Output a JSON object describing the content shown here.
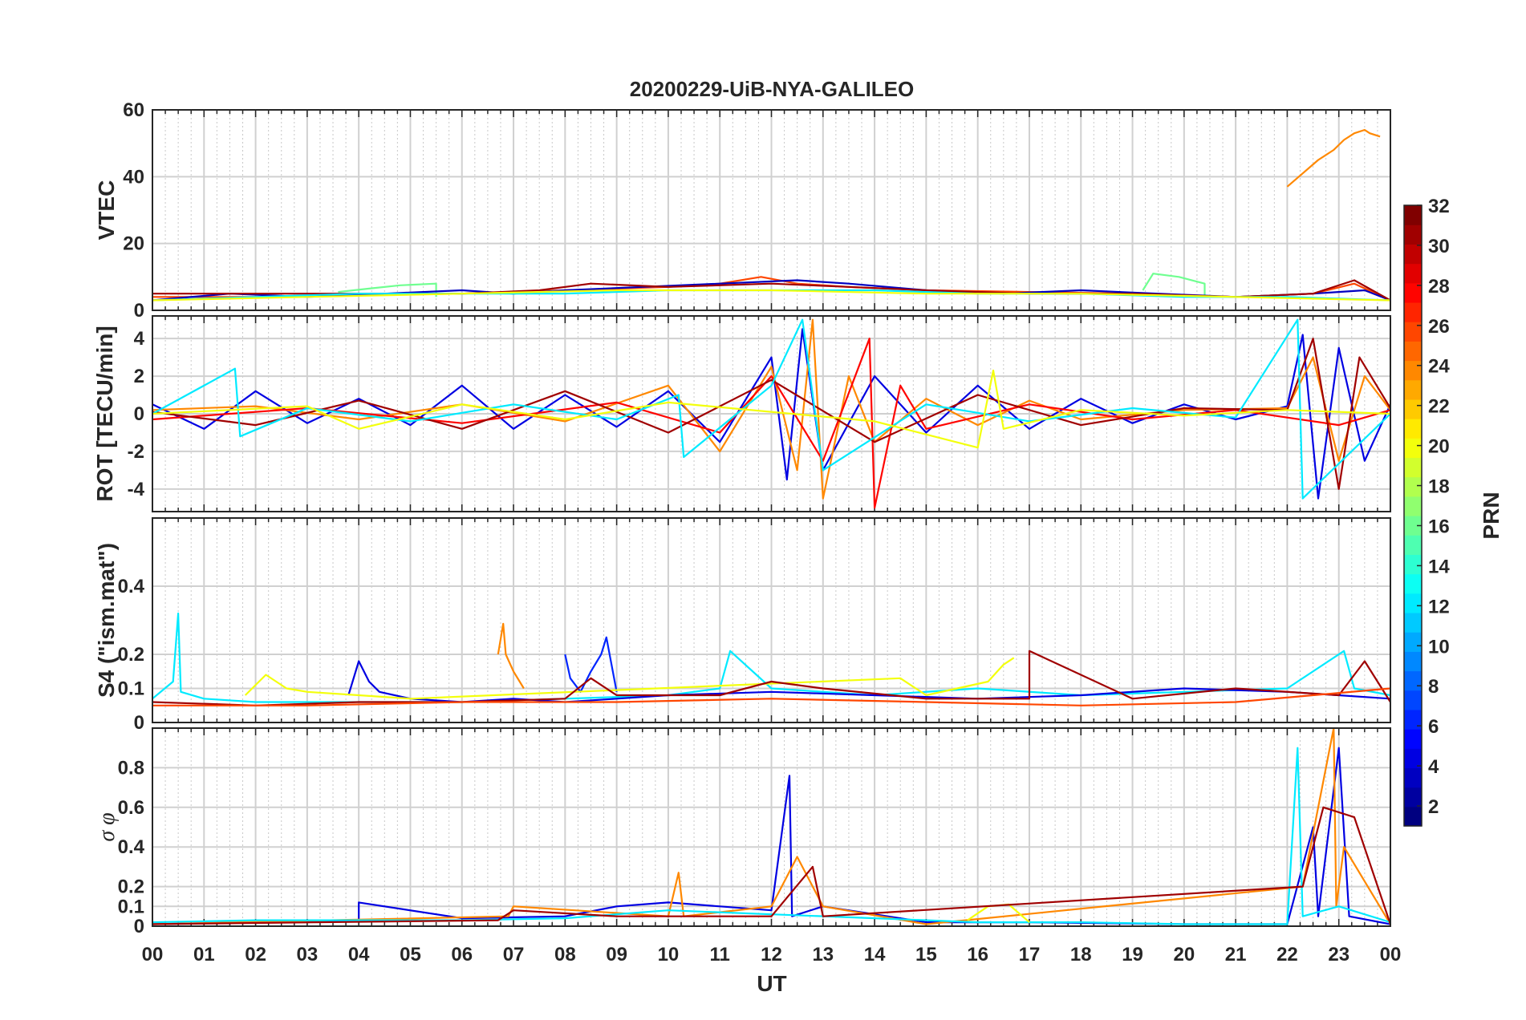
{
  "chart_data": {
    "type": "line",
    "title": "20200229-UiB-NYA-GALILEO",
    "xlabel": "UT",
    "x_ticks": [
      "00",
      "01",
      "02",
      "03",
      "04",
      "05",
      "06",
      "07",
      "08",
      "09",
      "10",
      "11",
      "12",
      "13",
      "14",
      "15",
      "16",
      "17",
      "18",
      "19",
      "20",
      "21",
      "22",
      "23",
      "00"
    ],
    "xlim": [
      0,
      24
    ],
    "grid": true,
    "colorbar": {
      "label": "PRN",
      "colormap": "jet",
      "range": [
        1,
        32
      ],
      "ticks": [
        "2",
        "4",
        "6",
        "8",
        "10",
        "12",
        "14",
        "16",
        "18",
        "20",
        "22",
        "24",
        "26",
        "28",
        "30",
        "32"
      ]
    },
    "panels": [
      {
        "ylabel": "VTEC",
        "ylim": [
          0,
          60
        ],
        "y_ticks": [
          "0",
          "20",
          "40",
          "60"
        ],
        "series": [
          {
            "prn": 24,
            "x": [
              22.0,
              22.3,
              22.6,
              22.9,
              23.1,
              23.3,
              23.5,
              23.6,
              23.8
            ],
            "y": [
              37,
              41,
              45,
              48,
              51,
              53,
              54,
              53,
              52
            ]
          },
          {
            "prn": 16,
            "x": [
              3.6,
              4.2,
              4.8,
              5.5,
              5.5
            ],
            "y": [
              5.5,
              6.5,
              7.5,
              8,
              4
            ]
          },
          {
            "prn": 16,
            "x": [
              19.2,
              19.4,
              19.9,
              20.4,
              20.4
            ],
            "y": [
              6,
              11,
              10,
              8,
              4
            ]
          },
          {
            "prn": 26,
            "x": [
              0,
              2,
              4,
              6,
              8,
              10,
              11,
              11.8,
              12.5,
              13.5,
              15,
              17,
              19,
              21,
              22.5,
              23.3,
              24
            ],
            "y": [
              4,
              4,
              4.5,
              5,
              6,
              7,
              8,
              10,
              8,
              7,
              6,
              5.5,
              5,
              4,
              5,
              8,
              3
            ]
          },
          {
            "prn": 3,
            "x": [
              0,
              1.5,
              3,
              4.5,
              6,
              7,
              8,
              9.5,
              11,
              12.5,
              13.5,
              15,
              16.5,
              18,
              19.5,
              21,
              22.5,
              23.5,
              24
            ],
            "y": [
              3,
              5,
              4,
              5,
              6,
              5,
              6,
              7,
              8,
              9,
              8,
              6,
              5,
              6,
              5,
              4,
              5,
              6,
              3
            ]
          },
          {
            "prn": 31,
            "x": [
              0,
              2,
              4,
              6,
              7.5,
              8.5,
              10,
              12,
              13.5,
              15,
              17,
              19,
              21,
              22.5,
              23.3,
              24
            ],
            "y": [
              5,
              5,
              5,
              5,
              6,
              8,
              7,
              8,
              7,
              6,
              5,
              5,
              4,
              5,
              9,
              3
            ]
          },
          {
            "prn": 12,
            "x": [
              0,
              2,
              4,
              6,
              8,
              10,
              12,
              14,
              16,
              18,
              20,
              22,
              24
            ],
            "y": [
              3,
              4,
              5,
              5,
              5,
              6,
              6,
              6,
              5,
              5,
              4,
              4,
              3
            ]
          },
          {
            "prn": 20,
            "x": [
              0,
              3,
              6,
              9,
              12,
              15,
              18,
              21,
              24
            ],
            "y": [
              3,
              4,
              5,
              6,
              6,
              5,
              5,
              4,
              3
            ]
          }
        ]
      },
      {
        "ylabel": "ROT [TECU/min]",
        "ylim": [
          -5.2,
          5.2
        ],
        "y_ticks": [
          "-4",
          "-2",
          "0",
          "2",
          "4"
        ],
        "series": [
          {
            "prn": 4,
            "x": [
              0,
              1,
              2,
              3,
              4,
              5,
              6,
              7,
              8,
              9,
              10,
              11,
              12,
              12.3,
              12.6,
              13,
              14,
              15,
              16,
              17,
              18,
              19,
              20,
              21,
              22,
              22.3,
              22.6,
              23,
              23.5,
              24
            ],
            "y": [
              0.5,
              -0.8,
              1.2,
              -0.5,
              0.8,
              -0.6,
              1.5,
              -0.8,
              1.0,
              -0.7,
              1.2,
              -1.5,
              3.0,
              -3.5,
              4.5,
              -3.0,
              2.0,
              -1.0,
              1.5,
              -0.8,
              0.8,
              -0.5,
              0.5,
              -0.3,
              0.4,
              4.2,
              -4.5,
              3.5,
              -2.5,
              0.5
            ]
          },
          {
            "prn": 24,
            "x": [
              0,
              2,
              4,
              6,
              8,
              10,
              11,
              12,
              12.5,
              12.8,
              13,
              13.5,
              14,
              15,
              16,
              17,
              18,
              20,
              22,
              22.5,
              23,
              23.5,
              24
            ],
            "y": [
              0.2,
              0.4,
              -0.3,
              0.5,
              -0.4,
              1.5,
              -2.0,
              2.5,
              -3.0,
              5.0,
              -4.5,
              2.0,
              -1.5,
              0.8,
              -0.6,
              0.7,
              -0.3,
              0.2,
              0.3,
              3.0,
              -2.5,
              2.0,
              0.2
            ]
          },
          {
            "prn": 28,
            "x": [
              0,
              3,
              6,
              9,
              11,
              12,
              13,
              13.9,
              14,
              14.5,
              15,
              17,
              19,
              21,
              23,
              24
            ],
            "y": [
              -0.3,
              0.3,
              -0.5,
              0.6,
              -1.0,
              2.0,
              -2.5,
              4.0,
              -5.0,
              1.5,
              -0.8,
              0.5,
              -0.3,
              0.2,
              -0.6,
              0.2
            ]
          },
          {
            "prn": 31,
            "x": [
              0,
              2,
              4,
              6,
              8,
              10,
              12,
              14,
              16,
              18,
              20,
              22,
              22.5,
              23,
              23.4,
              24
            ],
            "y": [
              0.1,
              -0.6,
              0.7,
              -0.8,
              1.2,
              -1.0,
              1.8,
              -1.5,
              1.0,
              -0.6,
              0.3,
              0.2,
              4.0,
              -4.0,
              3.0,
              0.3
            ]
          },
          {
            "prn": 12,
            "x": [
              0,
              1.6,
              1.7,
              3,
              5,
              7,
              9,
              10.2,
              10.3,
              12,
              12.6,
              13,
              15,
              17,
              19,
              21,
              22.2,
              22.3,
              24
            ],
            "y": [
              0,
              2.4,
              -1.2,
              0.3,
              -0.4,
              0.5,
              -0.3,
              1.0,
              -2.3,
              1.5,
              5.0,
              -3.0,
              0.5,
              -0.4,
              0.3,
              -0.2,
              5.0,
              -4.5,
              0
            ]
          },
          {
            "prn": 20,
            "x": [
              0,
              3,
              4,
              6,
              8,
              10,
              14,
              16,
              16.3,
              16.5,
              18,
              20,
              22,
              24
            ],
            "y": [
              0,
              0.4,
              -0.8,
              0.5,
              -0.3,
              0.6,
              -0.4,
              -1.8,
              2.3,
              -0.8,
              0.2,
              -0.1,
              0.2,
              0
            ]
          }
        ]
      },
      {
        "ylabel": "S4 (\"ism.mat\")",
        "ylim": [
          0,
          0.6
        ],
        "y_ticks": [
          "0",
          "0.1",
          "0.2",
          "0.4"
        ],
        "series": [
          {
            "prn": 12,
            "x": [
              0,
              0.4,
              0.5,
              0.55,
              1,
              2,
              4,
              6,
              8,
              10,
              11,
              11.2,
              12,
              14,
              16,
              18,
              20,
              22,
              23.1,
              23.3,
              24
            ],
            "y": [
              0.07,
              0.12,
              0.32,
              0.09,
              0.07,
              0.06,
              0.06,
              0.06,
              0.07,
              0.08,
              0.1,
              0.21,
              0.1,
              0.08,
              0.1,
              0.08,
              0.09,
              0.1,
              0.21,
              0.1,
              0.08
            ]
          },
          {
            "prn": 24,
            "x": [
              6.7,
              6.8,
              6.85,
              7.0,
              7.2
            ],
            "y": [
              0.2,
              0.29,
              0.2,
              0.15,
              0.1
            ]
          },
          {
            "prn": 6,
            "x": [
              8.0,
              8.1,
              8.3,
              8.5,
              8.7,
              8.8,
              9.0
            ],
            "y": [
              0.2,
              0.13,
              0.09,
              0.15,
              0.2,
              0.25,
              0.09
            ]
          },
          {
            "prn": 4,
            "x": [
              3.8,
              4.0,
              4.2,
              4.4,
              5,
              6,
              7,
              8,
              9,
              10,
              12,
              14,
              16,
              18,
              20,
              22,
              24
            ],
            "y": [
              0.08,
              0.18,
              0.12,
              0.09,
              0.07,
              0.06,
              0.07,
              0.06,
              0.07,
              0.08,
              0.09,
              0.08,
              0.07,
              0.08,
              0.1,
              0.09,
              0.07
            ]
          },
          {
            "prn": 20,
            "x": [
              1.8,
              2.2,
              2.6,
              3.0,
              4.0,
              5.0,
              14.5,
              15.0,
              16.2,
              16.5,
              16.7
            ],
            "y": [
              0.08,
              0.14,
              0.1,
              0.09,
              0.08,
              0.07,
              0.13,
              0.08,
              0.12,
              0.17,
              0.19
            ]
          },
          {
            "prn": 31,
            "x": [
              0,
              2,
              4,
              6,
              8,
              8.5,
              9,
              11,
              12,
              13,
              15,
              17,
              17.0,
              19,
              21,
              23,
              23.5,
              24
            ],
            "y": [
              0.06,
              0.05,
              0.06,
              0.06,
              0.07,
              0.13,
              0.08,
              0.08,
              0.12,
              0.1,
              0.07,
              0.07,
              0.21,
              0.07,
              0.1,
              0.08,
              0.18,
              0.06
            ]
          },
          {
            "prn": 26,
            "x": [
              0,
              3,
              6,
              9,
              12,
              15,
              18,
              21,
              24
            ],
            "y": [
              0.05,
              0.05,
              0.06,
              0.06,
              0.07,
              0.06,
              0.05,
              0.06,
              0.1
            ]
          }
        ]
      },
      {
        "ylabel": "σ φ",
        "ylim": [
          0,
          1.0
        ],
        "y_ticks": [
          "0",
          "0.1",
          "0.2",
          "0.4",
          "0.6",
          "0.8"
        ],
        "series": [
          {
            "prn": 4,
            "x": [
              0,
              2,
              4,
              4.0,
              6,
              8,
              9,
              10,
              12,
              12.35,
              12.4,
              13,
              15,
              17,
              20,
              22,
              22.5,
              22.6,
              23.0,
              23.2,
              24
            ],
            "y": [
              0.01,
              0.02,
              0.03,
              0.12,
              0.04,
              0.05,
              0.1,
              0.12,
              0.08,
              0.76,
              0.05,
              0.1,
              0.02,
              0.02,
              0.01,
              0.01,
              0.5,
              0.05,
              0.9,
              0.05,
              0.01
            ]
          },
          {
            "prn": 24,
            "x": [
              0,
              6.9,
              7.0,
              10,
              10.2,
              10.3,
              12,
              12.5,
              13,
              15,
              22.3,
              22.9,
              22.95,
              23.1,
              24
            ],
            "y": [
              0.01,
              0.05,
              0.1,
              0.05,
              0.27,
              0.05,
              0.1,
              0.35,
              0.1,
              0.01,
              0.2,
              1.0,
              0.1,
              0.4,
              0.01
            ]
          },
          {
            "prn": 12,
            "x": [
              0,
              2,
              4,
              6,
              8,
              10,
              12,
              14,
              15,
              16,
              18,
              20,
              22,
              22.2,
              22.3,
              23,
              24
            ],
            "y": [
              0.02,
              0.03,
              0.03,
              0.03,
              0.04,
              0.08,
              0.06,
              0.04,
              0.03,
              0.02,
              0.02,
              0.01,
              0.01,
              0.9,
              0.05,
              0.1,
              0.02
            ]
          },
          {
            "prn": 20,
            "x": [
              15.8,
              16.2,
              16.6,
              17.0
            ],
            "y": [
              0.03,
              0.1,
              0.11,
              0.02
            ]
          },
          {
            "prn": 31,
            "x": [
              0,
              6.7,
              7.0,
              9,
              12,
              12.8,
              13,
              22.3,
              22.7,
              23.3,
              24
            ],
            "y": [
              0.01,
              0.03,
              0.08,
              0.05,
              0.05,
              0.3,
              0.05,
              0.2,
              0.6,
              0.55,
              0.01
            ]
          }
        ]
      }
    ]
  }
}
